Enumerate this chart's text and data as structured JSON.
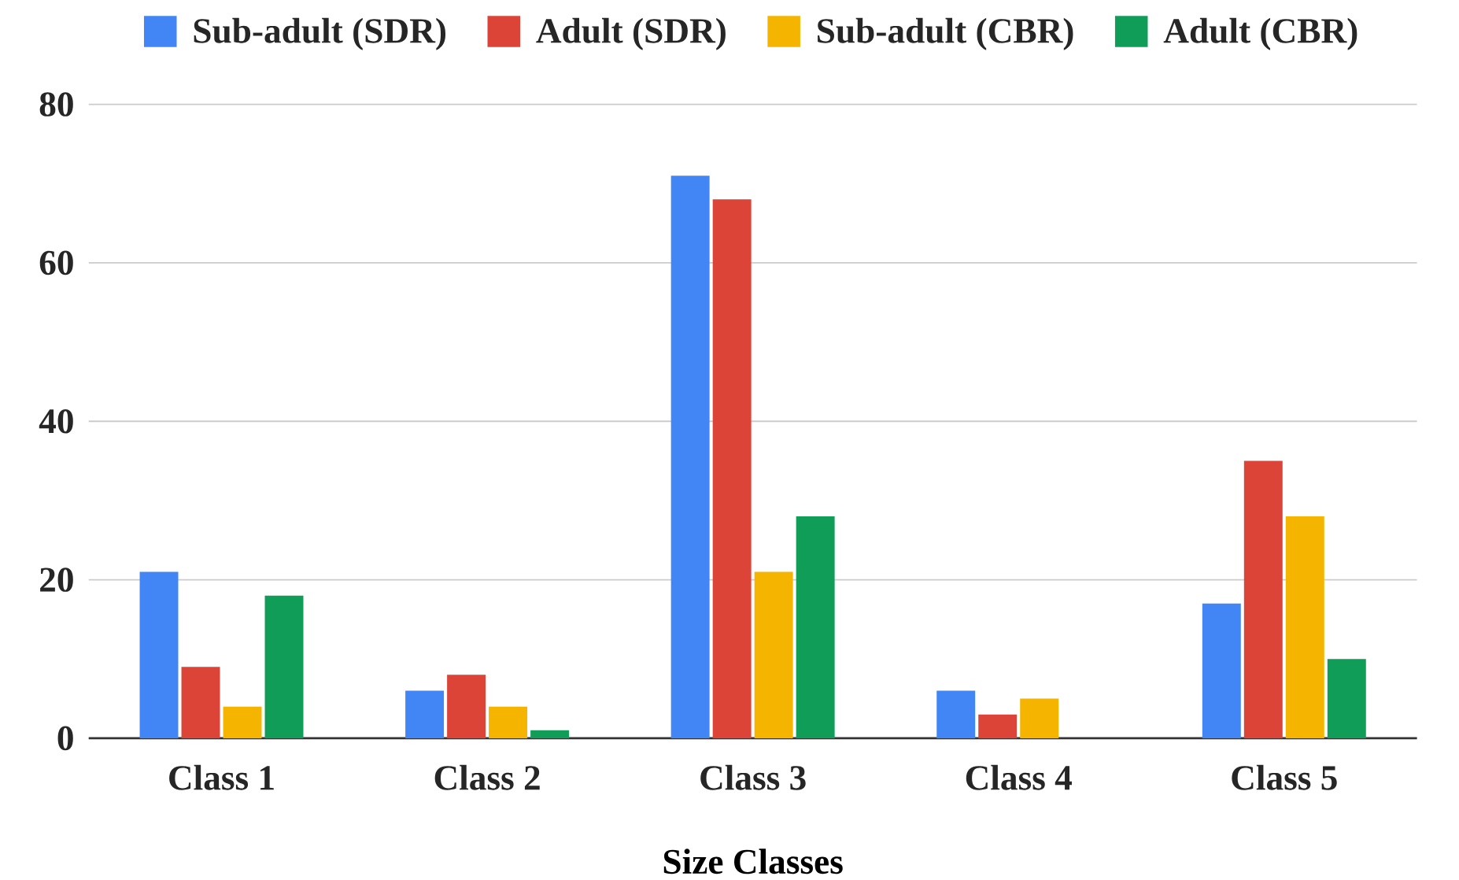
{
  "chart_data": {
    "type": "bar",
    "xlabel": "Size Classes",
    "categories": [
      "Class 1",
      "Class 2",
      "Class 3",
      "Class 4",
      "Class 5"
    ],
    "series": [
      {
        "name": "Sub-adult (SDR)",
        "color": "#4285f4",
        "values": [
          21,
          6,
          71,
          6,
          17
        ]
      },
      {
        "name": "Adult (SDR)",
        "color": "#db4437",
        "values": [
          9,
          8,
          68,
          3,
          35
        ]
      },
      {
        "name": "Sub-adult (CBR)",
        "color": "#f4b400",
        "values": [
          4,
          4,
          21,
          5,
          28
        ]
      },
      {
        "name": "Adult (CBR)",
        "color": "#0f9d58",
        "values": [
          18,
          1,
          28,
          null,
          10
        ]
      }
    ],
    "ylim": [
      0,
      80
    ],
    "yticks": [
      0,
      20,
      40,
      60,
      80
    ],
    "grid": "y",
    "legend": "top"
  }
}
